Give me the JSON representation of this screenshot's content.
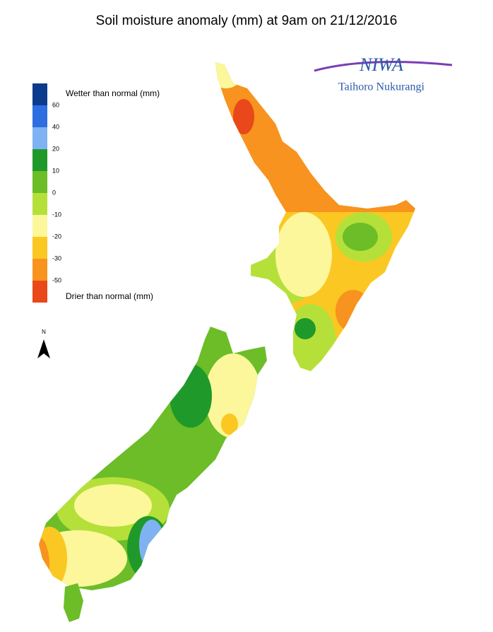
{
  "header": {
    "title": "Soil moisture anomaly (mm) at 9am on 21/12/2016"
  },
  "logo": {
    "name": "NIWA",
    "subtitle": "Taihoro Nukurangi"
  },
  "north_arrow": {
    "label": "N"
  },
  "legend": {
    "top_label": "Wetter than normal (mm)",
    "bottom_label": "Drier than normal (mm)",
    "colors": [
      "#0b3b8c",
      "#2d6fe0",
      "#7fb2f2",
      "#1f9a2a",
      "#6cbd28",
      "#b5e03a",
      "#fbf79a",
      "#fbc722",
      "#f7931e",
      "#e8481a"
    ],
    "labels": [
      "60",
      "40",
      "20",
      "10",
      "0",
      "-10",
      "-20",
      "-30",
      "-50"
    ]
  }
}
